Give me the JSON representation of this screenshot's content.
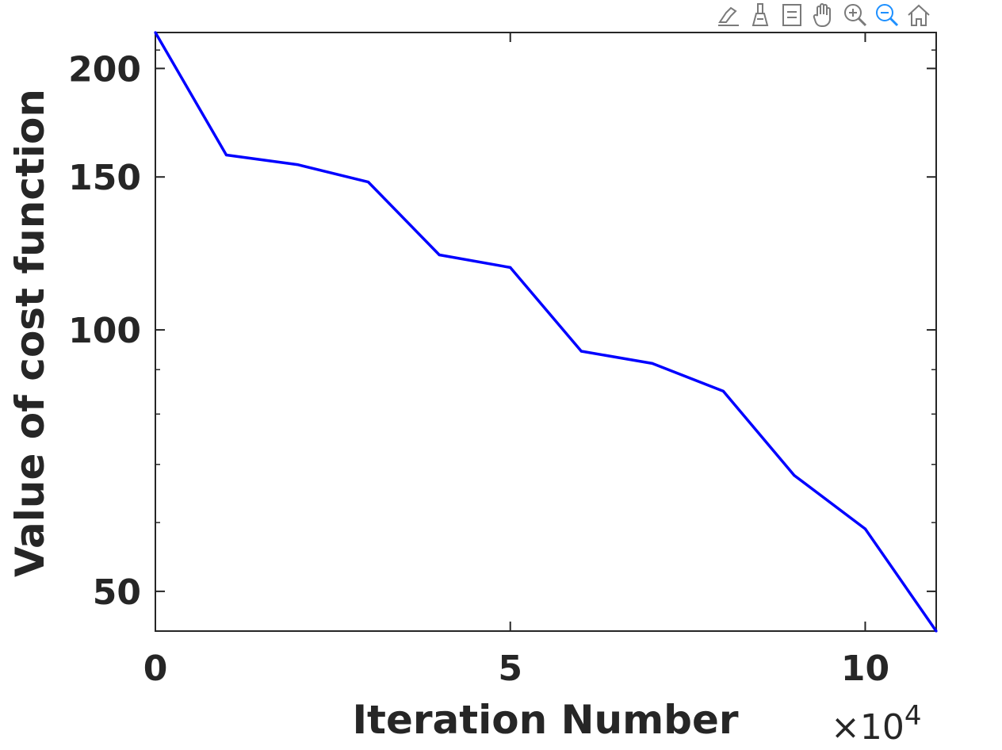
{
  "toolbar": {
    "items": [
      {
        "icon": "data-tips-icon"
      },
      {
        "icon": "brush-icon"
      },
      {
        "icon": "legend-icon"
      },
      {
        "icon": "pan-hand-icon"
      },
      {
        "icon": "zoom-in-icon"
      },
      {
        "icon": "zoom-out-icon"
      },
      {
        "icon": "home-icon"
      }
    ],
    "active_color": "#1e90ff",
    "inactive_color": "#7a7a7a"
  },
  "chart_data": {
    "type": "line",
    "xlabel": "Iteration Number",
    "ylabel": "Value of cost function",
    "x_exponent_label": {
      "base": "×10",
      "exp": "4"
    },
    "xlim": [
      0,
      11
    ],
    "ylim": [
      45,
      220
    ],
    "y_scale": "log",
    "xticks": [
      0,
      5,
      10
    ],
    "xtick_labels": [
      "0",
      "5",
      "10"
    ],
    "yticks": [
      50,
      100,
      150,
      200
    ],
    "ytick_labels": [
      "50",
      "100",
      "150",
      "200"
    ],
    "grid": false,
    "line_color": "#0000ff",
    "series": [
      {
        "x": [
          0,
          1,
          2,
          3,
          4,
          5,
          6,
          7,
          8,
          9,
          10,
          11
        ],
        "y": [
          220,
          159,
          155,
          148,
          122,
          118,
          94.5,
          91.5,
          85,
          68,
          59,
          45
        ]
      }
    ]
  }
}
